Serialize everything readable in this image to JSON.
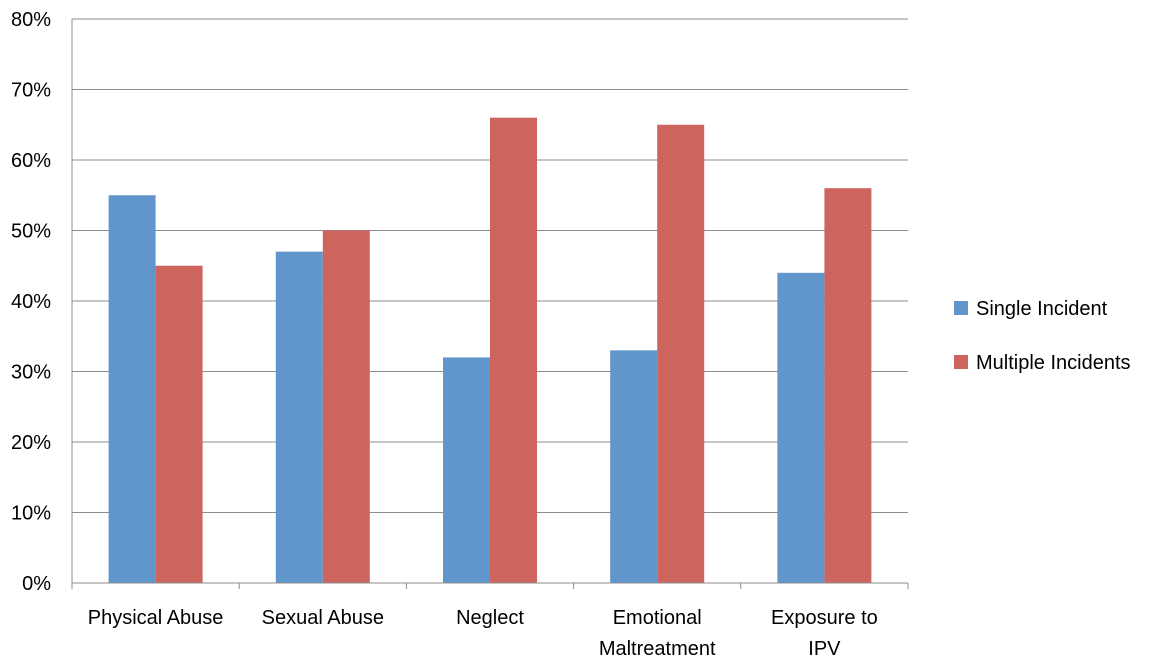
{
  "chart_data": {
    "type": "bar",
    "title": "",
    "xlabel": "",
    "ylabel": "",
    "categories": [
      [
        "Physical Abuse"
      ],
      [
        "Sexual Abuse"
      ],
      [
        "Neglect"
      ],
      [
        "Emotional",
        "Maltreatment"
      ],
      [
        "Exposure to",
        "IPV"
      ]
    ],
    "series": [
      {
        "name": "Single Incident",
        "color": "#6096CB",
        "values": [
          55,
          47,
          32,
          33,
          44
        ]
      },
      {
        "name": "Multiple Incidents",
        "color": "#CE645E",
        "values": [
          45,
          50,
          66,
          65,
          56
        ]
      }
    ],
    "ylim": [
      0,
      80
    ],
    "yticks": [
      "0%",
      "10%",
      "20%",
      "30%",
      "40%",
      "50%",
      "60%",
      "70%",
      "80%"
    ],
    "grid": true,
    "legend_position": "right"
  }
}
